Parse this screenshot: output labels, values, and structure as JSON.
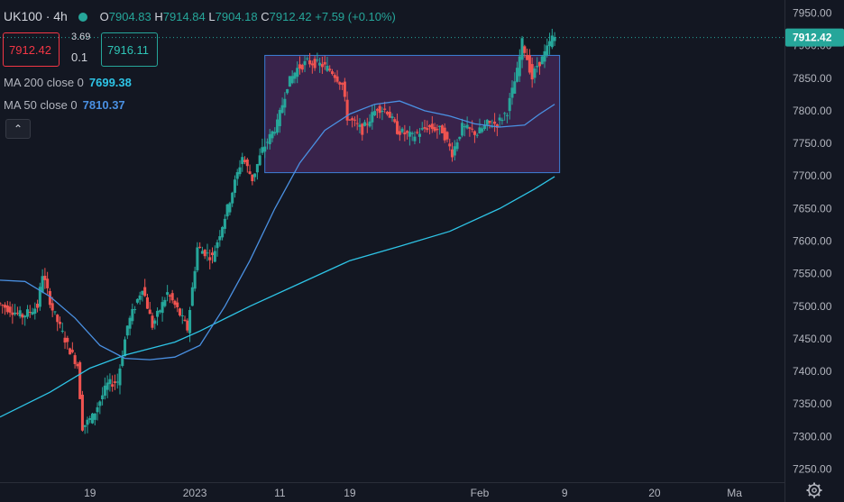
{
  "header": {
    "symbol": "UK100",
    "interval": "4h",
    "ohlc": {
      "open_label": "O",
      "open": "7904.83",
      "high_label": "H",
      "high": "7914.84",
      "low_label": "L",
      "low": "7904.18",
      "close_label": "C",
      "close": "7912.42",
      "change": "+7.59 (+0.10%)"
    }
  },
  "trade": {
    "sell": "7912.42",
    "buy": "7916.11",
    "spread_top": "3.69",
    "spread_bottom": "0.1"
  },
  "indicators": {
    "ma200": {
      "label": "MA 200 close 0",
      "value": "7699.38",
      "color": "#2ec4e6"
    },
    "ma50": {
      "label": "MA 50 close 0",
      "value": "7810.37",
      "color": "#4a90e2"
    }
  },
  "icons": {
    "collapse": "chevron-up-icon",
    "settings": "gear-icon",
    "status": "market-open-dot-icon"
  },
  "colors": {
    "up": "#26a69a",
    "down": "#ef5350",
    "background": "#131722",
    "range_box": "#5a2d6e"
  },
  "chart_data": {
    "type": "candlestick",
    "ylim": [
      7230,
      7970
    ],
    "y_ticks": [
      "7950.00",
      "7900.00",
      "7850.00",
      "7800.00",
      "7750.00",
      "7700.00",
      "7650.00",
      "7600.00",
      "7550.00",
      "7500.00",
      "7450.00",
      "7400.00",
      "7350.00",
      "7300.00",
      "7250.00"
    ],
    "y_tick_values": [
      7950,
      7900,
      7850,
      7800,
      7750,
      7700,
      7650,
      7600,
      7550,
      7500,
      7450,
      7400,
      7350,
      7300,
      7250
    ],
    "x_ticks": [
      "19",
      "2023",
      "11",
      "19",
      "Feb",
      "9",
      "20",
      "Ma"
    ],
    "x_tick_index": [
      18,
      39,
      56,
      70,
      96,
      113,
      131,
      147
    ],
    "index_range": [
      0,
      157
    ],
    "last_price": "7912.42",
    "last_price_value": 7912.42,
    "range_box": {
      "start_index": 53,
      "end_index": 112,
      "low": 7705,
      "high": 7885
    },
    "ma200": [
      [
        0,
        7330
      ],
      [
        10,
        7368
      ],
      [
        18,
        7405
      ],
      [
        25,
        7425
      ],
      [
        35,
        7445
      ],
      [
        40,
        7462
      ],
      [
        50,
        7500
      ],
      [
        60,
        7535
      ],
      [
        70,
        7570
      ],
      [
        80,
        7592
      ],
      [
        90,
        7615
      ],
      [
        100,
        7650
      ],
      [
        107,
        7680
      ],
      [
        111,
        7699
      ]
    ],
    "ma50": [
      [
        0,
        7540
      ],
      [
        5,
        7538
      ],
      [
        10,
        7515
      ],
      [
        15,
        7482
      ],
      [
        20,
        7440
      ],
      [
        25,
        7420
      ],
      [
        30,
        7418
      ],
      [
        35,
        7422
      ],
      [
        40,
        7440
      ],
      [
        45,
        7500
      ],
      [
        50,
        7570
      ],
      [
        55,
        7650
      ],
      [
        60,
        7720
      ],
      [
        65,
        7770
      ],
      [
        70,
        7795
      ],
      [
        75,
        7810
      ],
      [
        80,
        7815
      ],
      [
        85,
        7800
      ],
      [
        90,
        7792
      ],
      [
        95,
        7780
      ],
      [
        100,
        7775
      ],
      [
        105,
        7778
      ],
      [
        108,
        7795
      ],
      [
        111,
        7810
      ]
    ],
    "ohlc_keypoints": [
      [
        0,
        7505
      ],
      [
        5,
        7485
      ],
      [
        8,
        7500
      ],
      [
        9,
        7550
      ],
      [
        11,
        7495
      ],
      [
        14,
        7440
      ],
      [
        16,
        7410
      ],
      [
        17,
        7315
      ],
      [
        19,
        7330
      ],
      [
        22,
        7380
      ],
      [
        24,
        7385
      ],
      [
        26,
        7470
      ],
      [
        29,
        7530
      ],
      [
        31,
        7470
      ],
      [
        34,
        7520
      ],
      [
        36,
        7495
      ],
      [
        38,
        7465
      ],
      [
        40,
        7590
      ],
      [
        43,
        7575
      ],
      [
        46,
        7650
      ],
      [
        49,
        7730
      ],
      [
        51,
        7695
      ],
      [
        53,
        7740
      ],
      [
        56,
        7780
      ],
      [
        58,
        7840
      ],
      [
        60,
        7865
      ],
      [
        62,
        7875
      ],
      [
        65,
        7870
      ],
      [
        67,
        7860
      ],
      [
        69,
        7840
      ],
      [
        70,
        7790
      ],
      [
        73,
        7770
      ],
      [
        76,
        7805
      ],
      [
        78,
        7800
      ],
      [
        80,
        7770
      ],
      [
        83,
        7760
      ],
      [
        86,
        7775
      ],
      [
        89,
        7770
      ],
      [
        91,
        7735
      ],
      [
        93,
        7775
      ],
      [
        96,
        7765
      ],
      [
        98,
        7780
      ],
      [
        100,
        7780
      ],
      [
        102,
        7800
      ],
      [
        104,
        7860
      ],
      [
        105,
        7905
      ],
      [
        106,
        7880
      ],
      [
        107,
        7850
      ],
      [
        108,
        7870
      ],
      [
        109,
        7880
      ],
      [
        110,
        7895
      ],
      [
        111,
        7912
      ]
    ]
  }
}
